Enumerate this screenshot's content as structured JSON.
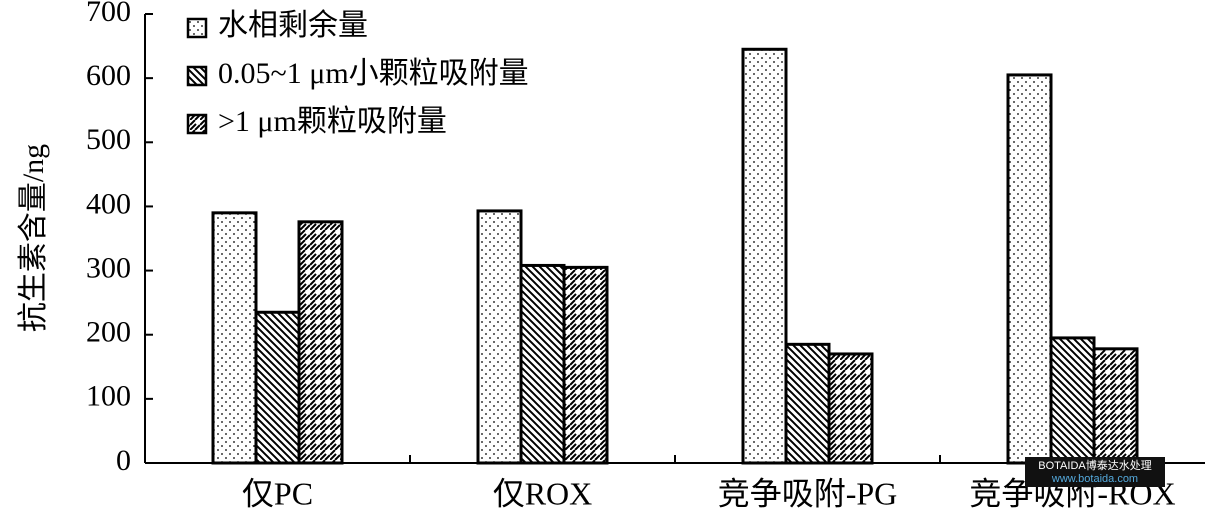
{
  "chart_data": {
    "type": "bar",
    "ylabel": "抗生素含量/ng",
    "categories": [
      "仅PC",
      "仅ROX",
      "竞争吸附-PG",
      "竞争吸附-ROX"
    ],
    "series": [
      {
        "name": "水相剩余量",
        "color": "#000000",
        "pattern": "dots",
        "values": [
          390,
          393,
          645,
          605
        ]
      },
      {
        "name": "0.05~1 μm小颗粒吸附量",
        "color": "#000000",
        "pattern": "back-diagonal",
        "values": [
          235,
          308,
          185,
          195
        ]
      },
      {
        "name": ">1 μm颗粒吸附量",
        "color": "#000000",
        "pattern": "dashed-diagonal",
        "values": [
          376,
          305,
          170,
          178
        ]
      }
    ],
    "ylim": [
      0,
      700
    ],
    "yticks": [
      0,
      100,
      200,
      300,
      400,
      500,
      600,
      700
    ],
    "legend": "top-left",
    "grid": false,
    "watermark": [
      "BOTAIDA博泰达水处理",
      "www.botaida.com"
    ]
  }
}
